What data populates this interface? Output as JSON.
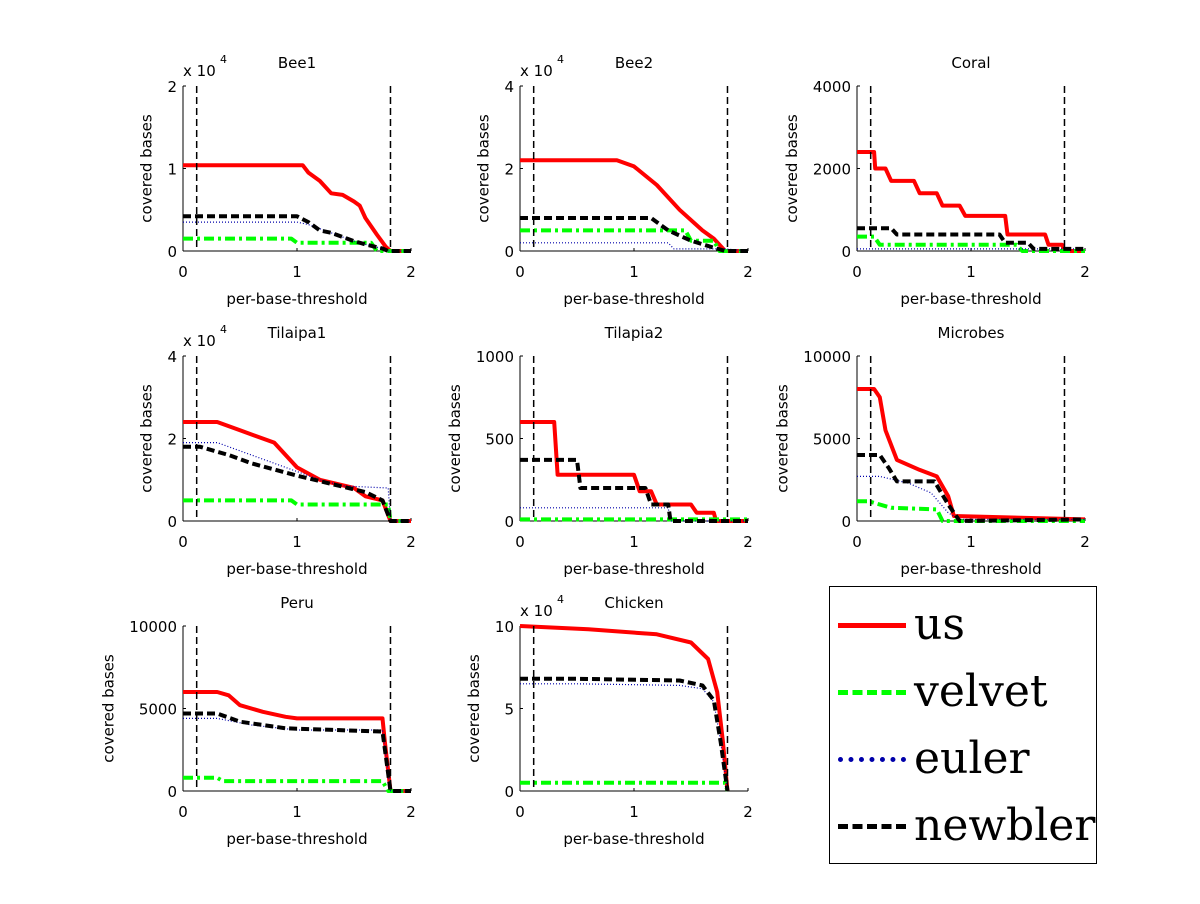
{
  "chart_data": [
    {
      "type": "line",
      "title": "Bee1",
      "xlabel": "per-base-threshold",
      "ylabel": "covered bases",
      "xlim": [
        0,
        2
      ],
      "ylim": [
        0,
        20000
      ],
      "exponent_label": "x 10",
      "exponent": "4",
      "xticks": [
        "0",
        "1",
        "2"
      ],
      "yticks": [
        "0",
        "1",
        "2"
      ],
      "ytick_values": [
        0,
        10000,
        20000
      ],
      "vlines": [
        0.12,
        1.82
      ],
      "series": [
        {
          "name": "us",
          "x": [
            0,
            1.05,
            1.1,
            1.2,
            1.3,
            1.4,
            1.5,
            1.55,
            1.6,
            1.7,
            1.78,
            1.82,
            2
          ],
          "y": [
            10400,
            10400,
            9500,
            8500,
            7000,
            6800,
            6000,
            5500,
            4000,
            2000,
            500,
            0,
            0
          ]
        },
        {
          "name": "velvet",
          "x": [
            0,
            0.95,
            1.0,
            1.65,
            1.7,
            2
          ],
          "y": [
            1500,
            1500,
            1000,
            1000,
            0,
            0
          ]
        },
        {
          "name": "euler",
          "x": [
            0,
            1.0,
            1.1,
            1.2,
            1.3,
            1.4,
            1.5,
            1.6,
            1.75,
            1.8,
            2
          ],
          "y": [
            3500,
            3500,
            3200,
            2700,
            2200,
            1700,
            1200,
            800,
            300,
            0,
            0
          ]
        },
        {
          "name": "newbler",
          "x": [
            0,
            1.0,
            1.1,
            1.2,
            1.3,
            1.4,
            1.5,
            1.6,
            1.75,
            1.8,
            2
          ],
          "y": [
            4200,
            4200,
            3500,
            2500,
            2200,
            1700,
            1200,
            800,
            300,
            0,
            0
          ]
        }
      ]
    },
    {
      "type": "line",
      "title": "Bee2",
      "xlabel": "per-base-threshold",
      "ylabel": "covered bases",
      "xlim": [
        0,
        2
      ],
      "ylim": [
        0,
        40000
      ],
      "exponent_label": "x 10",
      "exponent": "4",
      "xticks": [
        "0",
        "1",
        "2"
      ],
      "yticks": [
        "0",
        "2",
        "4"
      ],
      "ytick_values": [
        0,
        20000,
        40000
      ],
      "vlines": [
        0.12,
        1.82
      ],
      "series": [
        {
          "name": "us",
          "x": [
            0,
            0.85,
            1.0,
            1.2,
            1.4,
            1.6,
            1.7,
            1.8,
            2
          ],
          "y": [
            22000,
            22000,
            20500,
            16000,
            10000,
            5000,
            3000,
            0,
            0
          ]
        },
        {
          "name": "velvet",
          "x": [
            0,
            1.45,
            1.5,
            1.7,
            1.75,
            2
          ],
          "y": [
            5000,
            5000,
            2500,
            2500,
            0,
            0
          ]
        },
        {
          "name": "euler",
          "x": [
            0,
            1.3,
            1.35,
            1.8,
            2
          ],
          "y": [
            2000,
            2000,
            500,
            500,
            0
          ]
        },
        {
          "name": "newbler",
          "x": [
            0,
            1.15,
            1.3,
            1.5,
            1.7,
            1.8,
            2
          ],
          "y": [
            8000,
            8000,
            5000,
            2500,
            800,
            0,
            0
          ]
        }
      ]
    },
    {
      "type": "line",
      "title": "Coral",
      "xlabel": "per-base-threshold",
      "ylabel": "covered bases",
      "xlim": [
        0,
        2
      ],
      "ylim": [
        0,
        4000
      ],
      "xticks": [
        "0",
        "1",
        "2"
      ],
      "yticks": [
        "0",
        "2000",
        "4000"
      ],
      "ytick_values": [
        0,
        2000,
        4000
      ],
      "vlines": [
        0.12,
        1.82
      ],
      "series": [
        {
          "name": "us",
          "x": [
            0,
            0.15,
            0.16,
            0.25,
            0.3,
            0.5,
            0.55,
            0.7,
            0.75,
            0.9,
            0.95,
            1.3,
            1.32,
            1.65,
            1.68,
            1.8,
            1.82,
            2
          ],
          "y": [
            2400,
            2400,
            2000,
            2000,
            1700,
            1700,
            1400,
            1400,
            1100,
            1100,
            850,
            850,
            400,
            400,
            150,
            150,
            0,
            0
          ]
        },
        {
          "name": "velvet",
          "x": [
            0,
            0.15,
            0.2,
            1.4,
            1.45,
            2
          ],
          "y": [
            350,
            350,
            150,
            150,
            0,
            0
          ]
        },
        {
          "name": "euler",
          "x": [
            0,
            2
          ],
          "y": [
            50,
            50
          ]
        },
        {
          "name": "newbler",
          "x": [
            0,
            0.3,
            0.35,
            1.25,
            1.3,
            1.5,
            1.55,
            2
          ],
          "y": [
            550,
            550,
            400,
            400,
            200,
            200,
            50,
            50
          ]
        }
      ]
    },
    {
      "type": "line",
      "title": "Tilaipa1",
      "xlabel": "per-base-threshold",
      "ylabel": "covered bases",
      "xlim": [
        0,
        2
      ],
      "ylim": [
        0,
        40000
      ],
      "exponent_label": "x 10",
      "exponent": "4",
      "xticks": [
        "0",
        "1",
        "2"
      ],
      "yticks": [
        "0",
        "2",
        "4"
      ],
      "ytick_values": [
        0,
        20000,
        40000
      ],
      "vlines": [
        0.12,
        1.82
      ],
      "series": [
        {
          "name": "us",
          "x": [
            0,
            0.3,
            0.5,
            0.8,
            1.0,
            1.2,
            1.5,
            1.6,
            1.75,
            1.82,
            2
          ],
          "y": [
            24000,
            24000,
            22000,
            19000,
            13000,
            10000,
            8000,
            6000,
            5000,
            0,
            0
          ]
        },
        {
          "name": "velvet",
          "x": [
            0,
            0.95,
            1.0,
            1.8,
            1.82,
            2
          ],
          "y": [
            5000,
            5000,
            4000,
            4000,
            0,
            0
          ]
        },
        {
          "name": "euler",
          "x": [
            0,
            0.3,
            0.6,
            0.9,
            1.2,
            1.4,
            1.8,
            1.82,
            2
          ],
          "y": [
            19000,
            19000,
            16000,
            13000,
            10000,
            8500,
            8000,
            0,
            0
          ]
        },
        {
          "name": "newbler",
          "x": [
            0,
            0.15,
            0.4,
            0.6,
            1.0,
            1.3,
            1.6,
            1.75,
            1.82,
            2
          ],
          "y": [
            18000,
            18000,
            16000,
            14000,
            11000,
            9000,
            7000,
            5000,
            0,
            0
          ]
        }
      ]
    },
    {
      "type": "line",
      "title": "Tilapia2",
      "xlabel": "per-base-threshold",
      "ylabel": "covered bases",
      "xlim": [
        0,
        2
      ],
      "ylim": [
        0,
        1000
      ],
      "xticks": [
        "0",
        "1",
        "2"
      ],
      "yticks": [
        "0",
        "500",
        "1000"
      ],
      "ytick_values": [
        0,
        500,
        1000
      ],
      "vlines": [
        0.12,
        1.82
      ],
      "series": [
        {
          "name": "us",
          "x": [
            0,
            0.3,
            0.33,
            1.0,
            1.05,
            1.15,
            1.2,
            1.5,
            1.55,
            1.7,
            1.72,
            2
          ],
          "y": [
            600,
            600,
            280,
            280,
            180,
            180,
            100,
            100,
            50,
            50,
            0,
            0
          ]
        },
        {
          "name": "velvet",
          "x": [
            0,
            2
          ],
          "y": [
            10,
            10
          ]
        },
        {
          "name": "euler",
          "x": [
            0,
            1.3,
            1.32,
            2
          ],
          "y": [
            80,
            80,
            0,
            0
          ]
        },
        {
          "name": "newbler",
          "x": [
            0,
            0.5,
            0.53,
            1.1,
            1.15,
            1.3,
            1.32,
            2
          ],
          "y": [
            370,
            370,
            200,
            200,
            100,
            100,
            0,
            0
          ]
        }
      ]
    },
    {
      "type": "line",
      "title": "Microbes",
      "xlabel": "per-base-threshold",
      "ylabel": "covered bases",
      "xlim": [
        0,
        2
      ],
      "ylim": [
        0,
        10000
      ],
      "xticks": [
        "0",
        "1",
        "2"
      ],
      "yticks": [
        "0",
        "5000",
        "10000"
      ],
      "ytick_values": [
        0,
        5000,
        10000
      ],
      "vlines": [
        0.12,
        1.82
      ],
      "series": [
        {
          "name": "us",
          "x": [
            0,
            0.15,
            0.2,
            0.25,
            0.35,
            0.55,
            0.7,
            0.8,
            0.85,
            2
          ],
          "y": [
            8000,
            8000,
            7500,
            5500,
            3700,
            3100,
            2700,
            1500,
            300,
            100
          ]
        },
        {
          "name": "velvet",
          "x": [
            0,
            0.1,
            0.3,
            0.7,
            0.75,
            2
          ],
          "y": [
            1200,
            1200,
            800,
            700,
            0,
            0
          ]
        },
        {
          "name": "euler",
          "x": [
            0,
            0.2,
            0.45,
            0.65,
            0.8,
            0.9,
            2
          ],
          "y": [
            2700,
            2700,
            2300,
            1700,
            500,
            100,
            100
          ]
        },
        {
          "name": "newbler",
          "x": [
            0,
            0.2,
            0.28,
            0.35,
            0.68,
            0.8,
            0.9,
            2
          ],
          "y": [
            4000,
            4000,
            3200,
            2400,
            2400,
            1000,
            0,
            100
          ]
        }
      ]
    },
    {
      "type": "line",
      "title": "Peru",
      "xlabel": "per-base-threshold",
      "ylabel": "covered bases",
      "xlim": [
        0,
        2
      ],
      "ylim": [
        0,
        10000
      ],
      "xticks": [
        "0",
        "1",
        "2"
      ],
      "yticks": [
        "0",
        "5000",
        "10000"
      ],
      "ytick_values": [
        0,
        5000,
        10000
      ],
      "vlines": [
        0.12,
        1.82
      ],
      "series": [
        {
          "name": "us",
          "x": [
            0,
            0.3,
            0.4,
            0.5,
            0.7,
            0.9,
            1.0,
            1.75,
            1.77,
            1.82,
            2
          ],
          "y": [
            6000,
            6000,
            5800,
            5200,
            4800,
            4500,
            4400,
            4400,
            3000,
            0,
            0
          ]
        },
        {
          "name": "velvet",
          "x": [
            0,
            0.3,
            0.35,
            1.75,
            1.8,
            2
          ],
          "y": [
            800,
            800,
            600,
            600,
            0,
            0
          ]
        },
        {
          "name": "euler",
          "x": [
            0,
            0.3,
            0.6,
            1.0,
            1.75,
            1.82,
            2
          ],
          "y": [
            4400,
            4400,
            4000,
            3700,
            3700,
            0,
            0
          ]
        },
        {
          "name": "newbler",
          "x": [
            0,
            0.3,
            0.5,
            0.9,
            1.75,
            1.82,
            2
          ],
          "y": [
            4700,
            4700,
            4200,
            3800,
            3600,
            0,
            0
          ]
        }
      ]
    },
    {
      "type": "line",
      "title": "Chicken",
      "xlabel": "per-base-threshold",
      "ylabel": "covered bases",
      "xlim": [
        0,
        2
      ],
      "ylim": [
        0,
        100000
      ],
      "exponent_label": "x 10",
      "exponent": "4",
      "xticks": [
        "0",
        "1",
        "2"
      ],
      "yticks": [
        "0",
        "5",
        "10"
      ],
      "ytick_values": [
        0,
        50000,
        100000
      ],
      "vlines": [
        0.12,
        1.82
      ],
      "series": [
        {
          "name": "us",
          "x": [
            0,
            0.6,
            1.2,
            1.5,
            1.65,
            1.73,
            1.78,
            1.82
          ],
          "y": [
            100000,
            98000,
            95000,
            90000,
            80000,
            60000,
            30000,
            0
          ]
        },
        {
          "name": "velvet",
          "x": [
            0,
            1.8,
            1.82
          ],
          "y": [
            5000,
            5000,
            0
          ]
        },
        {
          "name": "euler",
          "x": [
            0,
            0.5,
            1.4,
            1.6,
            1.7,
            1.76,
            1.82
          ],
          "y": [
            65000,
            65000,
            64000,
            62000,
            54000,
            30000,
            0
          ]
        },
        {
          "name": "newbler",
          "x": [
            0,
            0.5,
            1.4,
            1.6,
            1.7,
            1.76,
            1.82
          ],
          "y": [
            68000,
            68000,
            67000,
            64000,
            55000,
            30000,
            0
          ]
        }
      ]
    }
  ],
  "legend": [
    {
      "label": "us",
      "color": "#ff0000",
      "style": "solid"
    },
    {
      "label": "velvet",
      "color": "#00ff00",
      "style": "dashdot"
    },
    {
      "label": "euler",
      "color": "#0000aa",
      "style": "dotted"
    },
    {
      "label": "newbler",
      "color": "#000000",
      "style": "dashed"
    }
  ]
}
